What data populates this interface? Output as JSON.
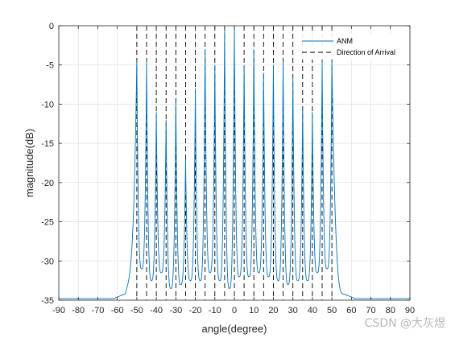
{
  "chart_data": {
    "type": "line",
    "xlabel": "angle(degree)",
    "ylabel": "magnitude(dB)",
    "xlim": [
      -90,
      90
    ],
    "ylim": [
      -35,
      0
    ],
    "xticks": [
      -90,
      -80,
      -70,
      -60,
      -50,
      -40,
      -30,
      -20,
      -10,
      0,
      10,
      20,
      30,
      40,
      50,
      60,
      70,
      80,
      90
    ],
    "yticks": [
      0,
      -5,
      -10,
      -15,
      -20,
      -25,
      -30,
      -35
    ],
    "grid": true,
    "legend_position": "top-right",
    "series": [
      {
        "name": "ANM",
        "color": "#0072bd",
        "style": "solid",
        "baseline_outside": -34.8,
        "peaks": [
          {
            "x": -50,
            "y": -4.5
          },
          {
            "x": -45,
            "y": -4.5
          },
          {
            "x": -40,
            "y": -11
          },
          {
            "x": -35,
            "y": -12
          },
          {
            "x": -30,
            "y": -9.5
          },
          {
            "x": -25,
            "y": -17
          },
          {
            "x": -20,
            "y": -8
          },
          {
            "x": -15,
            "y": -3
          },
          {
            "x": -10,
            "y": -5
          },
          {
            "x": -5,
            "y": -0.5
          },
          {
            "x": 0,
            "y": -0.2
          },
          {
            "x": 5,
            "y": -5
          },
          {
            "x": 10,
            "y": -3
          },
          {
            "x": 15,
            "y": -6
          },
          {
            "x": 20,
            "y": -5
          },
          {
            "x": 25,
            "y": -4.5
          },
          {
            "x": 30,
            "y": -6.5
          },
          {
            "x": 35,
            "y": -10.5
          },
          {
            "x": 40,
            "y": -11
          },
          {
            "x": 45,
            "y": -4.5
          },
          {
            "x": 50,
            "y": -4.5
          }
        ],
        "valleys": [
          {
            "x": -47.5,
            "y": -31
          },
          {
            "x": -42.5,
            "y": -32.5
          },
          {
            "x": -37.5,
            "y": -31.5
          },
          {
            "x": -32.5,
            "y": -33.5
          },
          {
            "x": -27.5,
            "y": -33
          },
          {
            "x": -22.5,
            "y": -32.5
          },
          {
            "x": -17.5,
            "y": -32.5
          },
          {
            "x": -12.5,
            "y": -31.5
          },
          {
            "x": -7.5,
            "y": -32.5
          },
          {
            "x": -2.5,
            "y": -33.5
          },
          {
            "x": 2.5,
            "y": -32
          },
          {
            "x": 7.5,
            "y": -32
          },
          {
            "x": 12.5,
            "y": -31.5
          },
          {
            "x": 17.5,
            "y": -32
          },
          {
            "x": 22.5,
            "y": -32.5
          },
          {
            "x": 27.5,
            "y": -33
          },
          {
            "x": 32.5,
            "y": -32.5
          },
          {
            "x": 37.5,
            "y": -32.5
          },
          {
            "x": 42.5,
            "y": -31.5
          },
          {
            "x": 47.5,
            "y": -31
          }
        ],
        "edge_levels": [
          {
            "x": -53.5,
            "y": -29
          },
          {
            "x": 53.5,
            "y": -29
          }
        ]
      },
      {
        "name": "Direction of Arrival",
        "color": "#000000",
        "style": "dashed",
        "x": [
          -50,
          -45,
          -40,
          -35,
          -30,
          -25,
          -20,
          -15,
          -10,
          -5,
          0,
          5,
          10,
          15,
          20,
          25,
          30,
          35,
          40,
          45,
          50
        ]
      }
    ]
  },
  "watermark": "CSDN @大灰煜"
}
